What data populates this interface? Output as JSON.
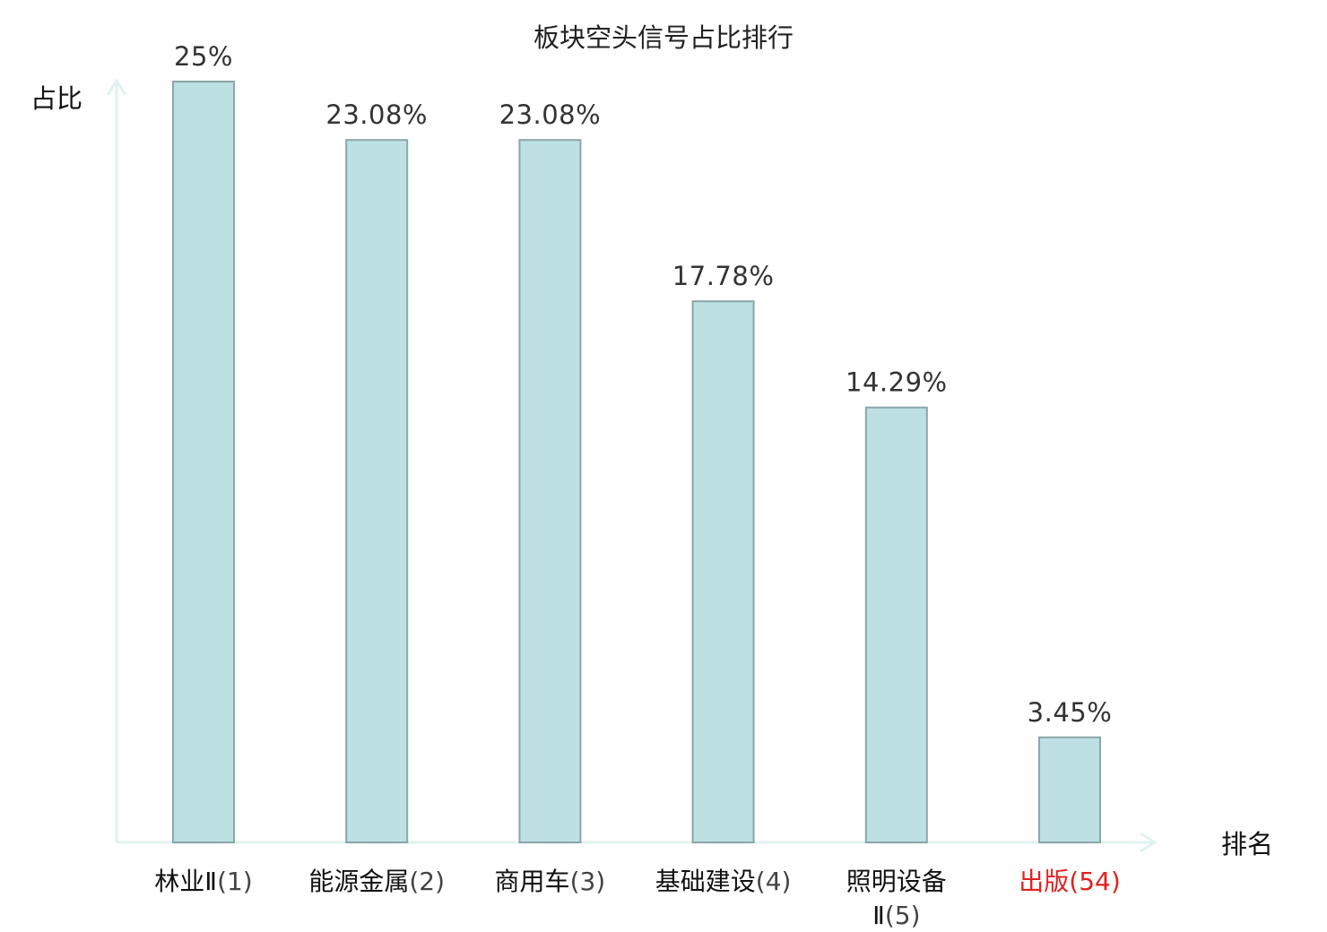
{
  "chart_data": {
    "type": "bar",
    "title": "板块空头信号占比排行",
    "xlabel": "排名",
    "ylabel": "占比",
    "ylim": [
      0,
      25
    ],
    "grid": false,
    "categories": [
      {
        "lines": [
          {
            "name": "林业Ⅱ",
            "rank": "(1)"
          }
        ],
        "highlight": false
      },
      {
        "lines": [
          {
            "name": "能源金属",
            "rank": "(2)"
          }
        ],
        "highlight": false
      },
      {
        "lines": [
          {
            "name": "商用车",
            "rank": "(3)"
          }
        ],
        "highlight": false
      },
      {
        "lines": [
          {
            "name": "基础建设",
            "rank": "(4)"
          }
        ],
        "highlight": false
      },
      {
        "lines": [
          {
            "name": "照明设备",
            "rank": ""
          },
          {
            "name": "Ⅱ",
            "rank": "(5)"
          }
        ],
        "highlight": false
      },
      {
        "lines": [
          {
            "name": "出版",
            "rank": "(54)"
          }
        ],
        "highlight": true
      }
    ],
    "values": [
      25,
      23.08,
      23.08,
      17.78,
      14.29,
      3.45
    ],
    "value_labels": [
      "25%",
      "23.08%",
      "23.08%",
      "17.78%",
      "14.29%",
      "3.45%"
    ],
    "colors": {
      "bar_fill": "#bde0e3",
      "bar_stroke": "#8aa6a8",
      "axis": "#e0f2ef",
      "highlight_label": "#e02020"
    }
  }
}
